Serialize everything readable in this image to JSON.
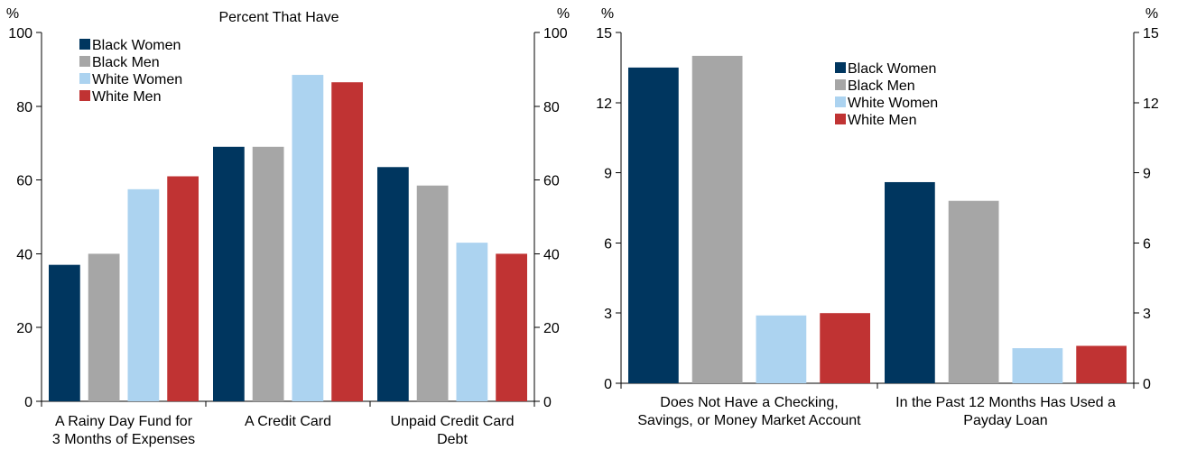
{
  "colors": {
    "black_women": "#00365F",
    "black_men": "#A6A6A6",
    "white_women": "#ACD3F0",
    "white_men": "#C03333"
  },
  "chart_data": [
    {
      "type": "bar",
      "title": "Percent That Have",
      "unit_left": "%",
      "unit_right": "%",
      "ylim": [
        0,
        100
      ],
      "yticks": [
        0,
        20,
        40,
        60,
        80,
        100
      ],
      "grid": false,
      "legend_position": "top-left",
      "categories": [
        [
          "A Rainy Day Fund for",
          "3 Months of Expenses"
        ],
        [
          "A Credit Card"
        ],
        [
          "Unpaid Credit Card",
          "Debt"
        ]
      ],
      "series": [
        {
          "name": "Black Women",
          "color": "#00365F",
          "values": [
            37,
            69,
            63.5
          ]
        },
        {
          "name": "Black Men",
          "color": "#A6A6A6",
          "values": [
            40,
            69,
            58.5
          ]
        },
        {
          "name": "White Women",
          "color": "#ACD3F0",
          "values": [
            57.5,
            88.5,
            43
          ]
        },
        {
          "name": "White Men",
          "color": "#C03333",
          "values": [
            61,
            86.5,
            40
          ]
        }
      ]
    },
    {
      "type": "bar",
      "title": "",
      "unit_left": "%",
      "unit_right": "%",
      "ylim": [
        0,
        15
      ],
      "yticks": [
        0,
        3,
        6,
        9,
        12,
        15
      ],
      "grid": false,
      "legend_position": "top-center",
      "categories": [
        [
          "Does Not Have a Checking,",
          "Savings, or Money Market Account"
        ],
        [
          "In the Past 12 Months Has Used a",
          "Payday Loan"
        ]
      ],
      "series": [
        {
          "name": "Black Women",
          "color": "#00365F",
          "values": [
            13.5,
            8.6
          ]
        },
        {
          "name": "Black Men",
          "color": "#A6A6A6",
          "values": [
            14,
            7.8
          ]
        },
        {
          "name": "White Women",
          "color": "#ACD3F0",
          "values": [
            2.9,
            1.5
          ]
        },
        {
          "name": "White Men",
          "color": "#C03333",
          "values": [
            3,
            1.6
          ]
        }
      ]
    }
  ]
}
